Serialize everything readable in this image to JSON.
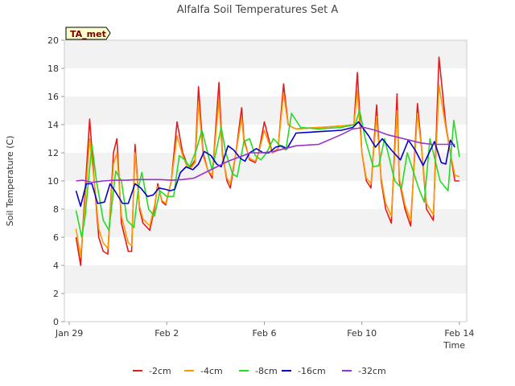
{
  "chart_data": {
    "type": "line",
    "title": "Alfalfa Soil Temperatures Set A",
    "xlabel": "Time",
    "ylabel": "Soil Temperature (C)",
    "badge": "TA_met",
    "xlim": [
      -0.2,
      16.3
    ],
    "ylim": [
      0,
      20
    ],
    "yticks": [
      0,
      2,
      4,
      6,
      8,
      10,
      12,
      14,
      16,
      18,
      20
    ],
    "xticks": [
      {
        "x": 0,
        "label": "Jan 29"
      },
      {
        "x": 4,
        "label": "Feb 2"
      },
      {
        "x": 8,
        "label": "Feb 6"
      },
      {
        "x": 12,
        "label": "Feb 10"
      },
      {
        "x": 16,
        "label": "Feb 14"
      }
    ],
    "grid": "horizontal bands",
    "legend_position": "bottom",
    "series": [
      {
        "name": "-2cm",
        "color": "#e41a1c",
        "x": [
          0.3,
          0.5,
          0.65,
          0.9,
          1.1,
          1.3,
          1.5,
          1.7,
          1.95,
          2.1,
          2.3,
          2.6,
          2.75,
          2.9,
          3.1,
          3.25,
          3.55,
          3.75,
          3.9,
          4.1,
          4.25,
          4.5,
          4.75,
          5.0,
          5.2,
          5.35,
          5.55,
          5.7,
          5.9,
          6.1,
          6.3,
          6.6,
          6.75,
          6.95,
          7.1,
          7.35,
          7.6,
          7.7,
          7.95,
          8.2,
          8.35,
          8.6,
          8.95,
          9.2,
          9.45,
          9.65,
          9.85,
          10.0,
          11.0,
          12.0,
          12.55,
          12.7,
          12.9,
          13.1,
          13.3,
          13.55,
          13.75,
          13.95,
          14.2,
          14.45,
          14.55,
          14.8,
          15.05,
          15.35,
          15.55,
          15.75,
          16.05,
          16.3,
          16.6,
          16.8,
          17.0,
          17.2
        ],
        "values": [
          6.0,
          4.0,
          8.0,
          14.4,
          10.0,
          6.0,
          5.0,
          4.8,
          12.0,
          13.0,
          7.0,
          5.0,
          5.0,
          12.6,
          8.0,
          7.0,
          6.5,
          8.0,
          9.8,
          8.5,
          8.3,
          10.0,
          14.2,
          12.0,
          11.2,
          11.0,
          11.5,
          16.7,
          12.0,
          10.8,
          10.2,
          17.0,
          12.0,
          10.0,
          9.5,
          12.0,
          15.2,
          13.0,
          11.5,
          11.3,
          12.0,
          14.2,
          12.0,
          12.2,
          16.9,
          14.0,
          13.8,
          13.7,
          13.8,
          13.9,
          14.0,
          17.7,
          12.0,
          10.0,
          9.5,
          15.4,
          10.0,
          8.0,
          7.0,
          16.2,
          10.0,
          8.0,
          6.8,
          15.5,
          12.0,
          8.0,
          7.2,
          18.8,
          14.0,
          12.0,
          10.0,
          10.0
        ]
      },
      {
        "name": "-4cm",
        "color": "#ff9900",
        "x": [
          0.3,
          0.5,
          0.65,
          0.9,
          1.1,
          1.3,
          1.5,
          1.7,
          1.95,
          2.1,
          2.3,
          2.6,
          2.75,
          2.9,
          3.1,
          3.25,
          3.55,
          3.75,
          3.9,
          4.1,
          4.25,
          4.5,
          4.75,
          5.0,
          5.2,
          5.35,
          5.55,
          5.7,
          5.9,
          6.1,
          6.3,
          6.6,
          6.75,
          6.95,
          7.1,
          7.35,
          7.6,
          7.7,
          7.95,
          8.2,
          8.35,
          8.6,
          8.95,
          9.2,
          9.45,
          9.65,
          9.85,
          10.0,
          11.0,
          12.0,
          12.55,
          12.7,
          12.9,
          13.1,
          13.3,
          13.55,
          13.75,
          13.95,
          14.2,
          14.45,
          14.55,
          14.8,
          15.05,
          15.35,
          15.55,
          15.75,
          16.05,
          16.3,
          16.6,
          16.8,
          17.0,
          17.2
        ],
        "values": [
          6.6,
          4.6,
          7.5,
          13.0,
          10.0,
          6.6,
          5.6,
          5.2,
          11.2,
          12.0,
          7.5,
          5.6,
          5.4,
          12.0,
          8.2,
          7.3,
          6.8,
          8.2,
          9.6,
          8.6,
          8.4,
          10.0,
          13.2,
          11.8,
          11.0,
          10.9,
          11.3,
          15.6,
          11.8,
          10.8,
          10.4,
          15.8,
          11.8,
          10.2,
          9.8,
          12.0,
          14.5,
          12.8,
          11.6,
          11.4,
          12.0,
          13.6,
          12.0,
          12.3,
          16.2,
          14.0,
          13.8,
          13.7,
          13.8,
          13.9,
          14.0,
          16.4,
          12.0,
          10.2,
          9.8,
          14.6,
          10.2,
          8.4,
          7.5,
          15.0,
          10.2,
          8.3,
          7.2,
          14.8,
          12.0,
          8.4,
          7.6,
          16.8,
          13.8,
          12.0,
          10.4,
          10.3
        ]
      },
      {
        "name": "-8cm",
        "color": "#22dd22",
        "x": [
          0.3,
          0.55,
          0.7,
          1.0,
          1.2,
          1.5,
          1.75,
          2.05,
          2.3,
          2.55,
          2.85,
          3.05,
          3.2,
          3.5,
          3.75,
          4.0,
          4.3,
          4.6,
          4.85,
          5.1,
          5.3,
          5.6,
          5.85,
          6.1,
          6.3,
          6.7,
          6.9,
          7.2,
          7.4,
          7.7,
          7.95,
          8.2,
          8.45,
          8.7,
          9.0,
          9.3,
          9.55,
          9.8,
          10.2,
          11.0,
          12.0,
          12.6,
          12.8,
          13.05,
          13.4,
          13.65,
          13.9,
          14.35,
          14.65,
          14.9,
          15.4,
          15.65,
          15.9,
          16.35,
          16.7,
          16.95,
          17.2
        ],
        "values": [
          7.9,
          6.0,
          7.5,
          12.6,
          10.0,
          7.2,
          6.5,
          10.7,
          10.0,
          7.2,
          6.7,
          9.5,
          10.6,
          8.0,
          7.5,
          9.3,
          8.9,
          8.9,
          11.8,
          11.5,
          11.0,
          12.2,
          13.6,
          12.0,
          10.8,
          13.8,
          12.0,
          10.5,
          10.3,
          12.8,
          13.0,
          11.8,
          11.5,
          12.0,
          13.0,
          12.5,
          12.2,
          14.8,
          13.8,
          13.7,
          13.8,
          14.0,
          15.0,
          13.0,
          11.0,
          11.1,
          13.0,
          10.0,
          9.5,
          12.0,
          9.5,
          8.5,
          13.0,
          10.0,
          9.3,
          14.3,
          11.7
        ]
      },
      {
        "name": "-16cm",
        "color": "#0000cc",
        "x": [
          0.3,
          0.5,
          0.75,
          1.0,
          1.25,
          1.55,
          1.8,
          2.05,
          2.35,
          2.6,
          2.9,
          3.15,
          3.45,
          3.7,
          3.95,
          4.25,
          4.45,
          4.65,
          4.9,
          5.15,
          5.45,
          5.7,
          5.95,
          6.25,
          6.5,
          6.7,
          7.0,
          7.25,
          7.55,
          7.75,
          7.95,
          8.25,
          8.55,
          8.8,
          9.1,
          9.35,
          9.6,
          10.0,
          11.0,
          12.0,
          12.5,
          12.75,
          13.2,
          13.5,
          13.8,
          14.2,
          14.6,
          14.95,
          15.25,
          15.6,
          16.1,
          16.4,
          16.6,
          16.8,
          17.0
        ],
        "values": [
          9.3,
          8.2,
          9.8,
          9.8,
          8.4,
          8.5,
          9.8,
          9.2,
          8.4,
          8.4,
          9.8,
          9.5,
          8.9,
          9.0,
          9.5,
          9.4,
          9.3,
          9.4,
          10.6,
          11.0,
          10.8,
          11.2,
          12.1,
          11.8,
          11.2,
          11.0,
          12.5,
          12.2,
          11.6,
          11.4,
          12.0,
          12.3,
          12.0,
          12.0,
          12.4,
          12.5,
          12.3,
          13.4,
          13.5,
          13.6,
          13.8,
          14.2,
          13.2,
          12.4,
          13.0,
          12.2,
          11.5,
          12.9,
          12.2,
          11.1,
          12.8,
          11.3,
          11.2,
          12.9,
          12.4
        ]
      },
      {
        "name": "-32cm",
        "color": "#9933cc",
        "x": [
          0.3,
          0.6,
          1.0,
          1.5,
          2.0,
          2.5,
          3.0,
          3.5,
          4.0,
          4.5,
          5.0,
          5.5,
          6.0,
          6.5,
          7.0,
          7.5,
          8.0,
          8.5,
          9.0,
          9.5,
          10.0,
          11.0,
          12.0,
          12.5,
          13.0,
          13.5,
          14.0,
          14.5,
          15.0,
          15.5,
          16.0,
          16.5,
          17.0
        ],
        "values": [
          10.0,
          10.05,
          9.9,
          10.0,
          10.05,
          10.05,
          10.1,
          10.1,
          10.1,
          10.05,
          10.1,
          10.2,
          10.6,
          11.0,
          11.4,
          11.7,
          12.0,
          12.0,
          12.1,
          12.3,
          12.5,
          12.6,
          13.3,
          13.7,
          13.8,
          13.6,
          13.3,
          13.1,
          12.9,
          12.7,
          12.6,
          12.6,
          12.6
        ]
      }
    ]
  }
}
